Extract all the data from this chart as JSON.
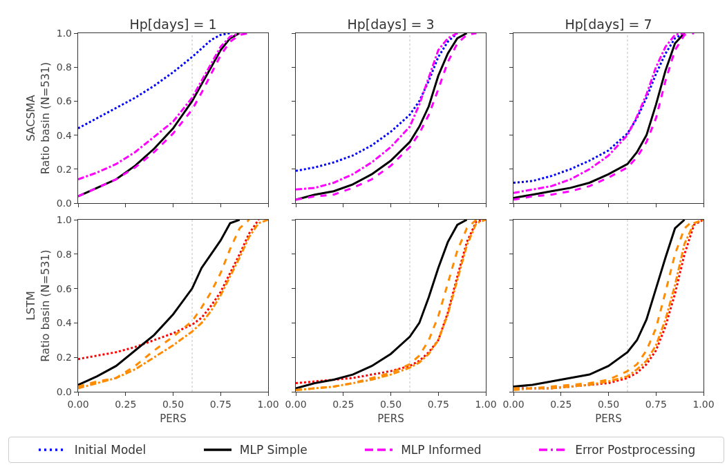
{
  "chart_data": [
    {
      "type": "line",
      "title": "Hp[days] = 1",
      "ylabel": "SACSMA\nRatio basin (N=531)",
      "x": [
        0,
        0.1,
        0.2,
        0.3,
        0.4,
        0.5,
        0.6,
        0.65,
        0.7,
        0.75,
        0.8,
        0.85,
        0.9
      ],
      "xlim": [
        0,
        1
      ],
      "ylim": [
        0,
        1
      ],
      "xticks": [
        {
          "value": 0,
          "label": null
        },
        {
          "value": 0.25,
          "label": null
        },
        {
          "value": 0.5,
          "label": null
        },
        {
          "value": 0.75,
          "label": null
        },
        {
          "value": 1,
          "label": null
        }
      ],
      "yticks": [
        {
          "value": 0,
          "label": "0.0"
        },
        {
          "value": 0.2,
          "label": "0.2"
        },
        {
          "value": 0.4,
          "label": "0.4"
        },
        {
          "value": 0.6,
          "label": "0.6"
        },
        {
          "value": 0.8,
          "label": "0.8"
        },
        {
          "value": 1,
          "label": "1.0"
        }
      ],
      "tick_labels": "y",
      "grid": false,
      "legend": "bottom",
      "ref_lines": [
        {
          "axis": "x",
          "value": 0.6,
          "color": "#cccccc",
          "line_style": "dotted"
        }
      ],
      "series": [
        {
          "name": "Initial Model",
          "color": "#0000ff",
          "line_style": "dotted",
          "values": [
            0.44,
            0.5,
            0.56,
            0.62,
            0.69,
            0.77,
            0.86,
            0.91,
            0.96,
            0.99,
            1,
            null,
            null
          ]
        },
        {
          "name": "MLP Simple",
          "color": "#000000",
          "line_style": "solid",
          "values": [
            0.04,
            0.09,
            0.14,
            0.22,
            0.32,
            0.44,
            0.6,
            0.7,
            0.8,
            0.9,
            0.97,
            1,
            null
          ]
        },
        {
          "name": "MLP Informed",
          "color": "#ff00ff",
          "line_style": "dashed",
          "values": [
            0.04,
            0.09,
            0.14,
            0.21,
            0.3,
            0.41,
            0.55,
            0.65,
            0.76,
            0.87,
            0.95,
            0.99,
            1
          ]
        },
        {
          "name": "Error Postprocessing",
          "color": "#ff00ff",
          "line_style": "dashdot",
          "values": [
            0.14,
            0.18,
            0.23,
            0.3,
            0.39,
            0.48,
            0.62,
            0.72,
            0.82,
            0.92,
            0.98,
            1,
            null
          ]
        }
      ]
    },
    {
      "type": "line",
      "title": "Hp[days] = 3",
      "x": [
        0,
        0.1,
        0.2,
        0.3,
        0.4,
        0.5,
        0.6,
        0.65,
        0.7,
        0.75,
        0.8,
        0.85,
        0.9,
        0.95
      ],
      "xlim": [
        0,
        1
      ],
      "ylim": [
        0,
        1
      ],
      "xticks": [
        {
          "value": 0,
          "label": null
        },
        {
          "value": 0.25,
          "label": null
        },
        {
          "value": 0.5,
          "label": null
        },
        {
          "value": 0.75,
          "label": null
        },
        {
          "value": 1,
          "label": null
        }
      ],
      "yticks": [
        {
          "value": 0,
          "label": null
        },
        {
          "value": 0.2,
          "label": null
        },
        {
          "value": 0.4,
          "label": null
        },
        {
          "value": 0.6,
          "label": null
        },
        {
          "value": 0.8,
          "label": null
        },
        {
          "value": 1,
          "label": null
        }
      ],
      "tick_labels": false,
      "grid": false,
      "ref_lines": [
        {
          "axis": "x",
          "value": 0.6,
          "color": "#cccccc",
          "line_style": "dotted"
        }
      ],
      "series": [
        {
          "color": "#0000ff",
          "line_style": "dotted",
          "values": [
            0.19,
            0.21,
            0.24,
            0.28,
            0.34,
            0.42,
            0.52,
            0.6,
            0.72,
            0.86,
            0.95,
            1,
            null,
            null
          ]
        },
        {
          "color": "#000000",
          "line_style": "solid",
          "values": [
            0.02,
            0.05,
            0.07,
            0.11,
            0.17,
            0.25,
            0.36,
            0.45,
            0.57,
            0.75,
            0.88,
            0.97,
            1,
            null
          ]
        },
        {
          "color": "#ff00ff",
          "line_style": "dashed",
          "values": [
            0.02,
            0.04,
            0.05,
            0.09,
            0.14,
            0.22,
            0.33,
            0.41,
            0.52,
            0.67,
            0.83,
            0.94,
            0.99,
            1
          ]
        },
        {
          "color": "#ff00ff",
          "line_style": "dashdot",
          "values": [
            0.08,
            0.09,
            0.12,
            0.17,
            0.24,
            0.33,
            0.45,
            0.58,
            0.74,
            0.9,
            0.97,
            1,
            null,
            null
          ]
        }
      ]
    },
    {
      "type": "line",
      "title": "Hp[days] = 7",
      "x": [
        0,
        0.1,
        0.2,
        0.3,
        0.4,
        0.5,
        0.6,
        0.65,
        0.7,
        0.75,
        0.8,
        0.85,
        0.9,
        0.95
      ],
      "xlim": [
        0,
        1
      ],
      "ylim": [
        0,
        1
      ],
      "xticks": [
        {
          "value": 0,
          "label": null
        },
        {
          "value": 0.25,
          "label": null
        },
        {
          "value": 0.5,
          "label": null
        },
        {
          "value": 0.75,
          "label": null
        },
        {
          "value": 1,
          "label": null
        }
      ],
      "yticks": [
        {
          "value": 0,
          "label": null
        },
        {
          "value": 0.2,
          "label": null
        },
        {
          "value": 0.4,
          "label": null
        },
        {
          "value": 0.6,
          "label": null
        },
        {
          "value": 0.8,
          "label": null
        },
        {
          "value": 1,
          "label": null
        }
      ],
      "tick_labels": false,
      "grid": false,
      "ref_lines": [
        {
          "axis": "x",
          "value": 0.6,
          "color": "#cccccc",
          "line_style": "dotted"
        }
      ],
      "series": [
        {
          "color": "#0000ff",
          "line_style": "dotted",
          "values": [
            0.12,
            0.13,
            0.16,
            0.2,
            0.25,
            0.31,
            0.41,
            0.5,
            0.62,
            0.76,
            0.88,
            0.97,
            1,
            null
          ]
        },
        {
          "color": "#000000",
          "line_style": "solid",
          "values": [
            0.03,
            0.05,
            0.07,
            0.09,
            0.12,
            0.17,
            0.23,
            0.3,
            0.4,
            0.58,
            0.78,
            0.94,
            1,
            null
          ]
        },
        {
          "color": "#ff00ff",
          "line_style": "dashed",
          "values": [
            0.02,
            0.04,
            0.05,
            0.07,
            0.1,
            0.15,
            0.21,
            0.27,
            0.36,
            0.5,
            0.72,
            0.9,
            0.99,
            1
          ]
        },
        {
          "color": "#ff00ff",
          "line_style": "dashdot",
          "values": [
            0.06,
            0.08,
            0.1,
            0.14,
            0.2,
            0.28,
            0.4,
            0.51,
            0.64,
            0.8,
            0.92,
            0.99,
            1,
            null
          ]
        }
      ]
    },
    {
      "type": "line",
      "xlabel": "PERS",
      "ylabel": "LSTM\nRatio basin (N=531)",
      "x": [
        0,
        0.1,
        0.2,
        0.3,
        0.4,
        0.5,
        0.6,
        0.65,
        0.7,
        0.75,
        0.8,
        0.85,
        0.9,
        0.95,
        1
      ],
      "xlim": [
        0,
        1
      ],
      "ylim": [
        0,
        1
      ],
      "xticks": [
        {
          "value": 0,
          "label": "0.00"
        },
        {
          "value": 0.25,
          "label": "0.25"
        },
        {
          "value": 0.5,
          "label": "0.50"
        },
        {
          "value": 0.75,
          "label": "0.75"
        },
        {
          "value": 1,
          "label": "1.00"
        }
      ],
      "yticks": [
        {
          "value": 0,
          "label": "0.0"
        },
        {
          "value": 0.2,
          "label": "0.2"
        },
        {
          "value": 0.4,
          "label": "0.4"
        },
        {
          "value": 0.6,
          "label": "0.6"
        },
        {
          "value": 0.8,
          "label": "0.8"
        },
        {
          "value": 1,
          "label": "1.0"
        }
      ],
      "grid": false,
      "ref_lines": [
        {
          "axis": "x",
          "value": 0.6,
          "color": "#cccccc",
          "line_style": "dotted"
        }
      ],
      "series": [
        {
          "color": "#ff0000",
          "line_style": "dotted",
          "values": [
            0.19,
            0.21,
            0.23,
            0.26,
            0.3,
            0.34,
            0.39,
            0.43,
            0.5,
            0.58,
            0.69,
            0.8,
            0.92,
            1,
            null
          ]
        },
        {
          "color": "#000000",
          "line_style": "solid",
          "values": [
            0.04,
            0.09,
            0.15,
            0.24,
            0.33,
            0.45,
            0.6,
            0.72,
            0.8,
            0.88,
            0.98,
            1,
            null,
            null,
            null
          ]
        },
        {
          "color": "#ff8c00",
          "line_style": "dashed",
          "values": [
            0.03,
            0.06,
            0.08,
            0.15,
            0.24,
            0.32,
            0.41,
            0.49,
            0.58,
            0.69,
            0.83,
            0.95,
            1,
            null,
            null
          ]
        },
        {
          "color": "#ff8c00",
          "line_style": "dashdot",
          "values": [
            0.02,
            0.05,
            0.08,
            0.13,
            0.2,
            0.27,
            0.35,
            0.4,
            0.47,
            0.56,
            0.67,
            0.78,
            0.9,
            0.98,
            1
          ]
        }
      ]
    },
    {
      "type": "line",
      "xlabel": "PERS",
      "x": [
        0,
        0.1,
        0.2,
        0.3,
        0.4,
        0.5,
        0.6,
        0.65,
        0.7,
        0.75,
        0.8,
        0.85,
        0.9,
        0.95,
        1
      ],
      "xlim": [
        0,
        1
      ],
      "ylim": [
        0,
        1
      ],
      "xticks": [
        {
          "value": 0,
          "label": "0.00"
        },
        {
          "value": 0.25,
          "label": "0.25"
        },
        {
          "value": 0.5,
          "label": "0.50"
        },
        {
          "value": 0.75,
          "label": "0.75"
        },
        {
          "value": 1,
          "label": "1.00"
        }
      ],
      "yticks": [
        {
          "value": 0,
          "label": null
        },
        {
          "value": 0.2,
          "label": null
        },
        {
          "value": 0.4,
          "label": null
        },
        {
          "value": 0.6,
          "label": null
        },
        {
          "value": 0.8,
          "label": null
        },
        {
          "value": 1,
          "label": null
        }
      ],
      "tick_labels": "x",
      "grid": false,
      "ref_lines": [
        {
          "axis": "x",
          "value": 0.6,
          "color": "#cccccc",
          "line_style": "dotted"
        }
      ],
      "series": [
        {
          "color": "#ff0000",
          "line_style": "dotted",
          "values": [
            0.05,
            0.06,
            0.07,
            0.08,
            0.1,
            0.12,
            0.15,
            0.18,
            0.23,
            0.3,
            0.46,
            0.67,
            0.87,
            0.99,
            1
          ]
        },
        {
          "color": "#000000",
          "line_style": "solid",
          "values": [
            0.02,
            0.05,
            0.07,
            0.1,
            0.15,
            0.22,
            0.32,
            0.4,
            0.55,
            0.72,
            0.87,
            0.97,
            1,
            null,
            null
          ]
        },
        {
          "color": "#ff8c00",
          "line_style": "dashed",
          "values": [
            0.01,
            0.02,
            0.03,
            0.05,
            0.08,
            0.11,
            0.16,
            0.21,
            0.3,
            0.44,
            0.63,
            0.82,
            0.95,
            1,
            null
          ]
        },
        {
          "color": "#ff8c00",
          "line_style": "dashdot",
          "values": [
            0.01,
            0.02,
            0.03,
            0.05,
            0.07,
            0.1,
            0.14,
            0.17,
            0.22,
            0.3,
            0.45,
            0.65,
            0.85,
            0.98,
            1
          ]
        }
      ]
    },
    {
      "type": "line",
      "xlabel": "PERS",
      "x": [
        0,
        0.1,
        0.2,
        0.3,
        0.4,
        0.5,
        0.6,
        0.65,
        0.7,
        0.75,
        0.8,
        0.85,
        0.9,
        0.95,
        1
      ],
      "xlim": [
        0,
        1
      ],
      "ylim": [
        0,
        1
      ],
      "xticks": [
        {
          "value": 0,
          "label": "0.00"
        },
        {
          "value": 0.25,
          "label": "0.25"
        },
        {
          "value": 0.5,
          "label": "0.50"
        },
        {
          "value": 0.75,
          "label": "0.75"
        },
        {
          "value": 1,
          "label": "1.00"
        }
      ],
      "yticks": [
        {
          "value": 0,
          "label": null
        },
        {
          "value": 0.2,
          "label": null
        },
        {
          "value": 0.4,
          "label": null
        },
        {
          "value": 0.6,
          "label": null
        },
        {
          "value": 0.8,
          "label": null
        },
        {
          "value": 1,
          "label": null
        }
      ],
      "tick_labels": "x",
      "grid": false,
      "ref_lines": [
        {
          "axis": "x",
          "value": 0.6,
          "color": "#cccccc",
          "line_style": "dotted"
        }
      ],
      "series": [
        {
          "color": "#ff0000",
          "line_style": "dotted",
          "values": [
            0.02,
            0.02,
            0.02,
            0.03,
            0.04,
            0.05,
            0.08,
            0.11,
            0.16,
            0.24,
            0.38,
            0.57,
            0.8,
            0.97,
            1
          ]
        },
        {
          "color": "#000000",
          "line_style": "solid",
          "values": [
            0.03,
            0.04,
            0.06,
            0.08,
            0.1,
            0.15,
            0.23,
            0.3,
            0.42,
            0.6,
            0.78,
            0.95,
            1,
            null,
            null
          ]
        },
        {
          "color": "#ff8c00",
          "line_style": "dashed",
          "values": [
            0.02,
            0.02,
            0.03,
            0.04,
            0.05,
            0.07,
            0.12,
            0.16,
            0.24,
            0.37,
            0.58,
            0.8,
            0.95,
            1,
            null
          ]
        },
        {
          "color": "#ff8c00",
          "line_style": "dashdot",
          "values": [
            0.01,
            0.02,
            0.02,
            0.03,
            0.04,
            0.06,
            0.09,
            0.13,
            0.18,
            0.27,
            0.42,
            0.62,
            0.86,
            0.98,
            1
          ]
        }
      ]
    }
  ]
}
